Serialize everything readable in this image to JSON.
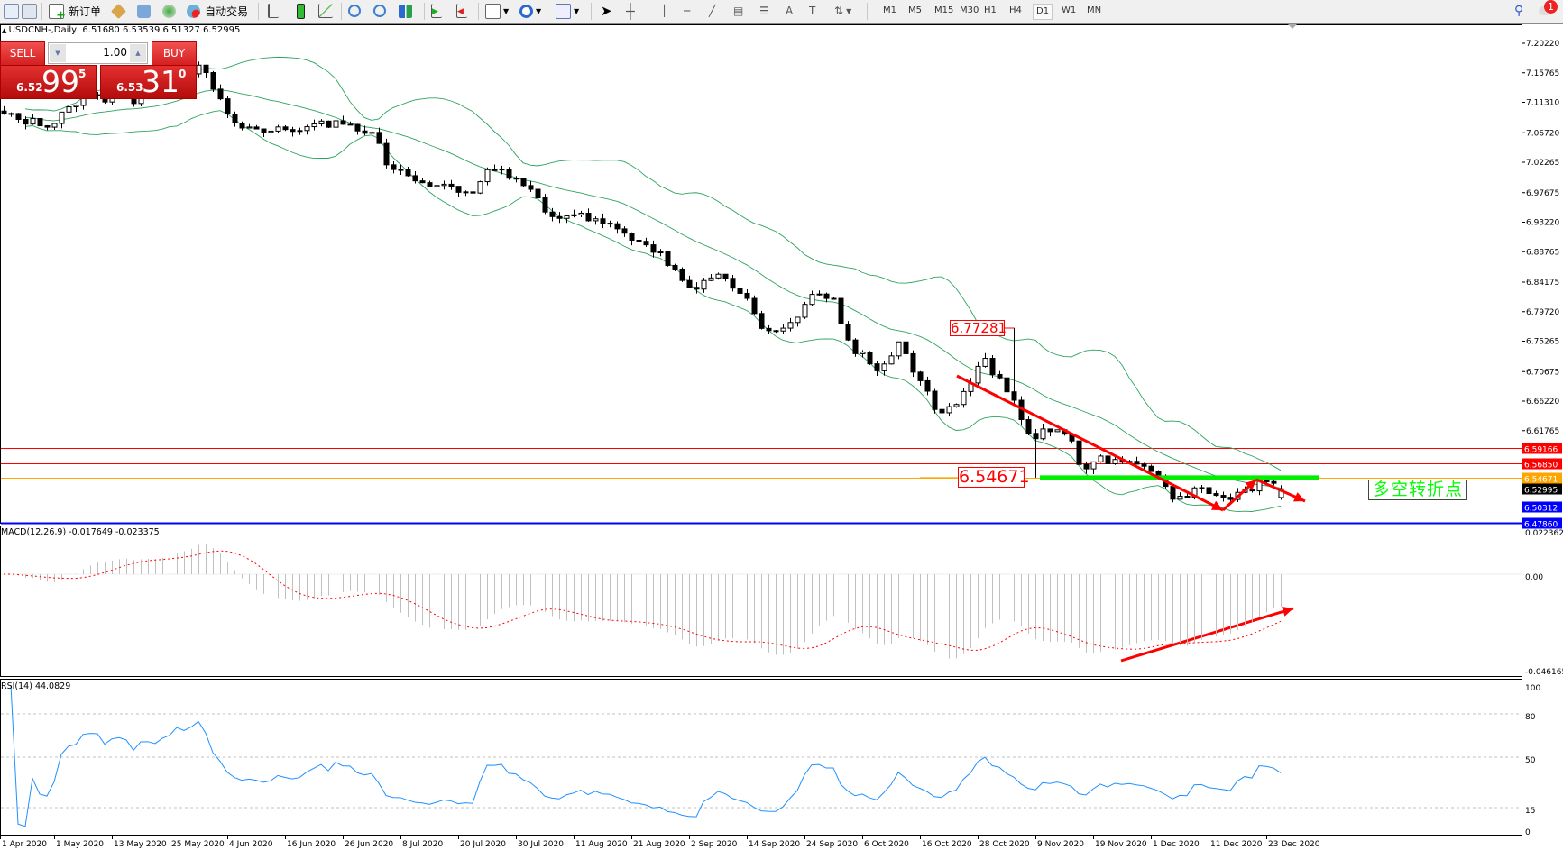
{
  "toolbar": {
    "new_order_label": "新订单",
    "auto_trading_label": "自动交易",
    "timeframes": [
      "M1",
      "M5",
      "M15",
      "M30",
      "H1",
      "H4",
      "D1",
      "W1",
      "MN"
    ],
    "active_timeframe": "D1",
    "notification_count": "1",
    "icons": [
      "new-chart-icon",
      "profiles-icon",
      "new-order-icon",
      "metaeditor-icon",
      "market-watch-icon",
      "signals-icon",
      "auto-trading-icon",
      "bar-chart-icon",
      "candlestick-icon",
      "line-chart-icon",
      "zoom-in-icon",
      "zoom-out-icon",
      "tile-windows-icon",
      "auto-scroll-icon",
      "chart-shift-icon",
      "indicators-icon",
      "periods-icon",
      "templates-icon",
      "cursor-icon",
      "crosshair-icon",
      "vertical-line-icon",
      "horizontal-line-icon",
      "trendline-icon",
      "equidistant-channel-icon",
      "fibonacci-icon",
      "text-icon",
      "text-label-icon",
      "arrows-icon",
      "search-icon",
      "chat-icon"
    ]
  },
  "chart": {
    "symbol_line": "USDCNH-,Daily",
    "ohlc": "6.51680 6.53539 6.51327 6.52995"
  },
  "trade_panel": {
    "sell_label": "SELL",
    "buy_label": "BUY",
    "lot": "1.00",
    "sell_price": {
      "prefix": "6.52",
      "big": "99",
      "sup": "5"
    },
    "buy_price": {
      "prefix": "6.53",
      "big": "31",
      "sup": "0"
    }
  },
  "annotations": {
    "high_label": "6.77281",
    "level_label": "6.54671",
    "turning_point_text": "多空转折点"
  },
  "colors": {
    "bollinger": "#2ea35f",
    "arrow": "#ff0000",
    "support_line": "#00ee00",
    "rsi_line": "#1e90ff",
    "macd_hist": "#c0c0c0",
    "macd_signal": "#ff0000"
  },
  "chart_data": {
    "type": "candlestick",
    "symbol": "USDCNH-",
    "timeframe": "Daily",
    "last": {
      "open": 6.5168,
      "high": 6.53539,
      "low": 6.51327,
      "close": 6.52995
    },
    "price_axis_ticks": [
      "7.20220",
      "7.15765",
      "7.11310",
      "7.06720",
      "7.02265",
      "6.97675",
      "6.93220",
      "6.88765",
      "6.84175",
      "6.79720",
      "6.75265",
      "6.70675",
      "6.66220",
      "6.61765"
    ],
    "price_range": [
      6.4786,
      7.2022
    ],
    "x_ticks": [
      {
        "label": "1 Apr 2020",
        "date": "2020-04-01"
      },
      {
        "label": "1 May 2020",
        "date": "2020-05-01"
      },
      {
        "label": "13 May 2020",
        "date": "2020-05-13"
      },
      {
        "label": "25 May 2020",
        "date": "2020-05-25"
      },
      {
        "label": "4 Jun 2020",
        "date": "2020-06-04"
      },
      {
        "label": "16 Jun 2020",
        "date": "2020-06-16"
      },
      {
        "label": "26 Jun 2020",
        "date": "2020-06-26"
      },
      {
        "label": "8 Jul 2020",
        "date": "2020-07-08"
      },
      {
        "label": "20 Jul 2020",
        "date": "2020-07-20"
      },
      {
        "label": "30 Jul 2020",
        "date": "2020-07-30"
      },
      {
        "label": "11 Aug 2020",
        "date": "2020-08-11"
      },
      {
        "label": "21 Aug 2020",
        "date": "2020-08-21"
      },
      {
        "label": "2 Sep 2020",
        "date": "2020-09-02"
      },
      {
        "label": "14 Sep 2020",
        "date": "2020-09-14"
      },
      {
        "label": "24 Sep 2020",
        "date": "2020-09-24"
      },
      {
        "label": "6 Oct 2020",
        "date": "2020-10-06"
      },
      {
        "label": "16 Oct 2020",
        "date": "2020-10-16"
      },
      {
        "label": "28 Oct 2020",
        "date": "2020-10-28"
      },
      {
        "label": "9 Nov 2020",
        "date": "2020-11-09"
      },
      {
        "label": "19 Nov 2020",
        "date": "2020-11-19"
      },
      {
        "label": "1 Dec 2020",
        "date": "2020-12-01"
      },
      {
        "label": "11 Dec 2020",
        "date": "2020-12-11"
      },
      {
        "label": "23 Dec 2020",
        "date": "2020-12-23"
      }
    ],
    "close_path": [
      [
        "2020-04-03",
        7.092
      ],
      [
        "2020-04-28",
        7.08
      ],
      [
        "2020-05-07",
        7.118
      ],
      [
        "2020-05-21",
        7.118
      ],
      [
        "2020-05-30",
        7.17
      ],
      [
        "2020-06-02",
        7.125
      ],
      [
        "2020-06-06",
        7.072
      ],
      [
        "2020-06-18",
        7.076
      ],
      [
        "2020-06-25",
        7.08
      ],
      [
        "2020-07-03",
        7.065
      ],
      [
        "2020-07-05",
        7.02
      ],
      [
        "2020-07-12",
        6.997
      ],
      [
        "2020-07-22",
        6.975
      ],
      [
        "2020-07-25",
        7.012
      ],
      [
        "2020-07-31",
        6.997
      ],
      [
        "2020-08-06",
        6.944
      ],
      [
        "2020-08-15",
        6.937
      ],
      [
        "2020-08-22",
        6.907
      ],
      [
        "2020-08-28",
        6.877
      ],
      [
        "2020-09-02",
        6.832
      ],
      [
        "2020-09-09",
        6.854
      ],
      [
        "2020-09-13",
        6.824
      ],
      [
        "2020-09-17",
        6.764
      ],
      [
        "2020-09-21",
        6.771
      ],
      [
        "2020-09-25",
        6.824
      ],
      [
        "2020-09-30",
        6.817
      ],
      [
        "2020-10-03",
        6.749
      ],
      [
        "2020-10-09",
        6.711
      ],
      [
        "2020-10-12",
        6.749
      ],
      [
        "2020-10-20",
        6.643
      ],
      [
        "2020-10-25",
        6.673
      ],
      [
        "2020-10-29",
        6.726
      ],
      [
        "2020-11-01",
        6.696
      ],
      [
        "2020-11-05",
        6.651
      ],
      [
        "2020-11-08",
        6.598
      ],
      [
        "2020-11-10",
        6.621
      ],
      [
        "2020-11-15",
        6.606
      ],
      [
        "2020-11-17",
        6.561
      ],
      [
        "2020-11-20",
        6.576
      ],
      [
        "2020-11-26",
        6.568
      ],
      [
        "2020-12-01",
        6.561
      ],
      [
        "2020-12-05",
        6.515
      ],
      [
        "2020-12-10",
        6.531
      ],
      [
        "2020-12-15",
        6.508
      ],
      [
        "2020-12-21",
        6.538
      ],
      [
        "2020-12-26",
        6.52995
      ]
    ],
    "spike_high": {
      "date": "2020-11-04",
      "price": 6.77281
    },
    "spike_low": {
      "date": "2020-11-09",
      "price": 6.54671
    },
    "levels": [
      {
        "price": "6.59166",
        "color": "#ff0000",
        "label_bg": "#ff0000"
      },
      {
        "price": "6.56850",
        "color": "#ff0000",
        "label_bg": "#ff0000"
      },
      {
        "price": "6.54671",
        "color": "#ffa500",
        "label_bg": "#ffa500"
      },
      {
        "price": "6.52995",
        "color": "#c0c0c0",
        "label_bg": "#000000"
      },
      {
        "price": "6.50312",
        "color": "#0000ff",
        "label_bg": "#0000ff"
      },
      {
        "price": "6.47860",
        "color": "#0000ff",
        "label_bg": "#0000ff"
      }
    ],
    "indicators": {
      "bollinger": {
        "period": 20,
        "deviation": 2
      },
      "macd": {
        "label": "MACD(12,26,9) -0.017649 -0.023375",
        "axis_ticks": [
          "0.022362",
          "0.00",
          "-0.046165"
        ],
        "range": [
          -0.046165,
          0.022362
        ]
      },
      "rsi": {
        "label": "RSI(14) 44.0829",
        "axis_ticks": [
          "100",
          "80",
          "50",
          "15",
          "0"
        ],
        "levels": [
          80,
          50,
          15
        ]
      }
    }
  }
}
